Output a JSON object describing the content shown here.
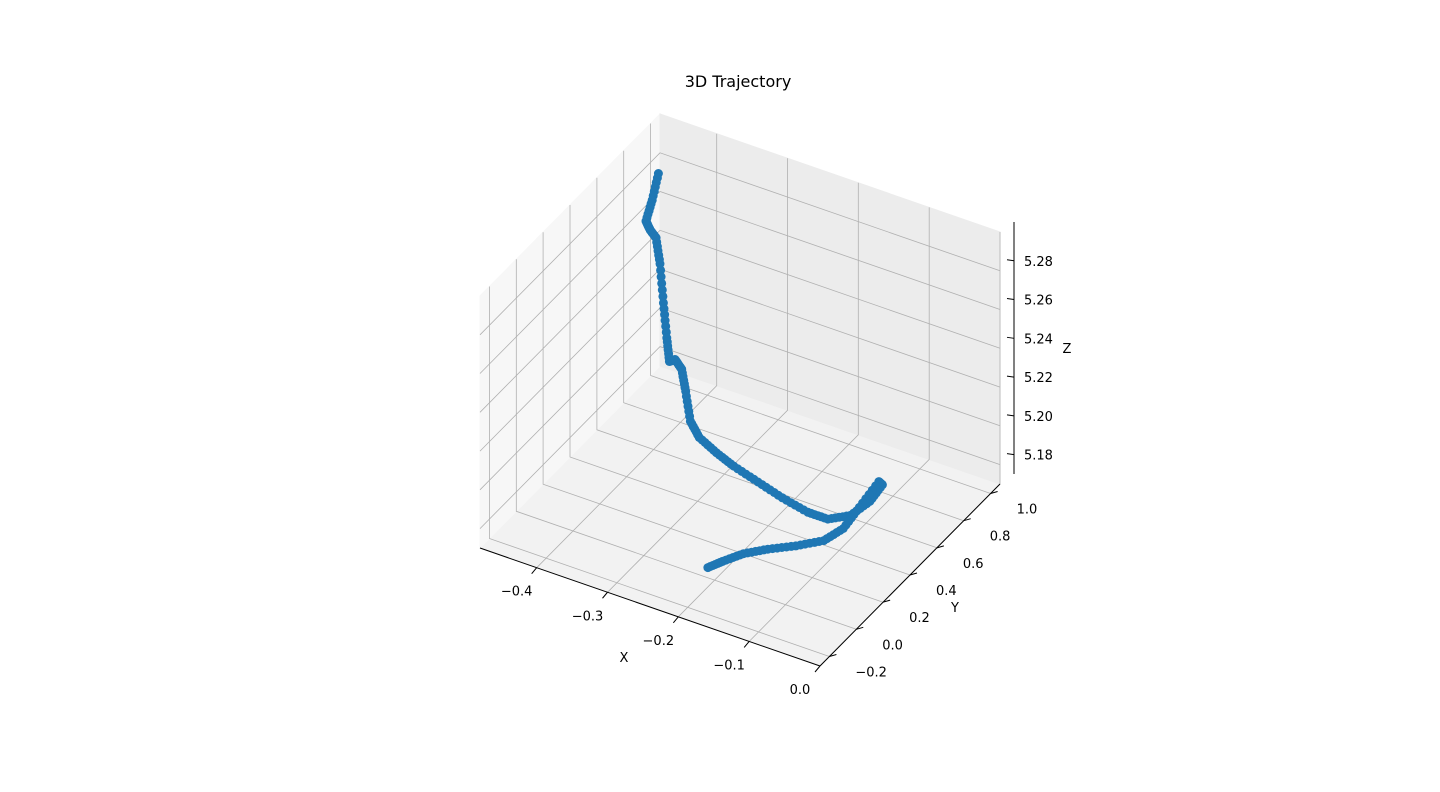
{
  "chart_data": {
    "type": "scatter",
    "projection": "3d",
    "title": "3D Trajectory",
    "xlabel": "X",
    "ylabel": "Y",
    "zlabel": "Z",
    "xlim": [
      -0.48,
      0.0
    ],
    "ylim": [
      -0.27,
      1.07
    ],
    "zlim": [
      5.17,
      5.3
    ],
    "xticks": [
      -0.4,
      -0.3,
      -0.2,
      -0.1,
      0.0
    ],
    "xtick_labels": [
      "−0.4",
      "−0.3",
      "−0.2",
      "−0.1",
      "0.0"
    ],
    "yticks": [
      -0.2,
      0.0,
      0.2,
      0.4,
      0.6,
      0.8,
      1.0
    ],
    "ytick_labels": [
      "−0.2",
      "0.0",
      "0.2",
      "0.4",
      "0.6",
      "0.8",
      "1.0"
    ],
    "zticks": [
      5.18,
      5.2,
      5.22,
      5.24,
      5.26,
      5.28
    ],
    "ztick_labels": [
      "5.18",
      "5.20",
      "5.22",
      "5.24",
      "5.26",
      "5.28"
    ],
    "grid": true,
    "series": [
      {
        "color": "#1f77b4",
        "points": [
          {
            "x": -0.45,
            "y": 0.9,
            "z": 5.285
          },
          {
            "x": -0.455,
            "y": 0.88,
            "z": 5.272
          },
          {
            "x": -0.46,
            "y": 0.86,
            "z": 5.262
          },
          {
            "x": -0.452,
            "y": 0.85,
            "z": 5.259
          },
          {
            "x": -0.44,
            "y": 0.83,
            "z": 5.258
          },
          {
            "x": -0.425,
            "y": 0.78,
            "z": 5.25
          },
          {
            "x": -0.405,
            "y": 0.7,
            "z": 5.238
          },
          {
            "x": -0.385,
            "y": 0.62,
            "z": 5.228
          },
          {
            "x": -0.37,
            "y": 0.56,
            "z": 5.222
          },
          {
            "x": -0.36,
            "y": 0.55,
            "z": 5.225
          },
          {
            "x": -0.345,
            "y": 0.52,
            "z": 5.224
          },
          {
            "x": -0.33,
            "y": 0.47,
            "z": 5.218
          },
          {
            "x": -0.31,
            "y": 0.4,
            "z": 5.21
          },
          {
            "x": -0.29,
            "y": 0.36,
            "z": 5.207
          },
          {
            "x": -0.26,
            "y": 0.33,
            "z": 5.205
          },
          {
            "x": -0.23,
            "y": 0.3,
            "z": 5.204
          },
          {
            "x": -0.19,
            "y": 0.27,
            "z": 5.203
          },
          {
            "x": -0.15,
            "y": 0.24,
            "z": 5.202
          },
          {
            "x": -0.11,
            "y": 0.22,
            "z": 5.201
          },
          {
            "x": -0.08,
            "y": 0.21,
            "z": 5.202
          },
          {
            "x": -0.05,
            "y": 0.22,
            "z": 5.207
          },
          {
            "x": -0.03,
            "y": 0.26,
            "z": 5.214
          },
          {
            "x": -0.02,
            "y": 0.3,
            "z": 5.221
          },
          {
            "x": -0.025,
            "y": 0.3,
            "z": 5.222
          },
          {
            "x": -0.045,
            "y": 0.26,
            "z": 5.209
          },
          {
            "x": -0.06,
            "y": 0.22,
            "z": 5.199
          },
          {
            "x": -0.08,
            "y": 0.18,
            "z": 5.193
          },
          {
            "x": -0.11,
            "y": 0.13,
            "z": 5.19
          },
          {
            "x": -0.14,
            "y": 0.08,
            "z": 5.188
          },
          {
            "x": -0.165,
            "y": 0.03,
            "z": 5.186
          },
          {
            "x": -0.185,
            "y": -0.02,
            "z": 5.183
          },
          {
            "x": -0.2,
            "y": -0.05,
            "z": 5.18
          }
        ]
      }
    ]
  }
}
